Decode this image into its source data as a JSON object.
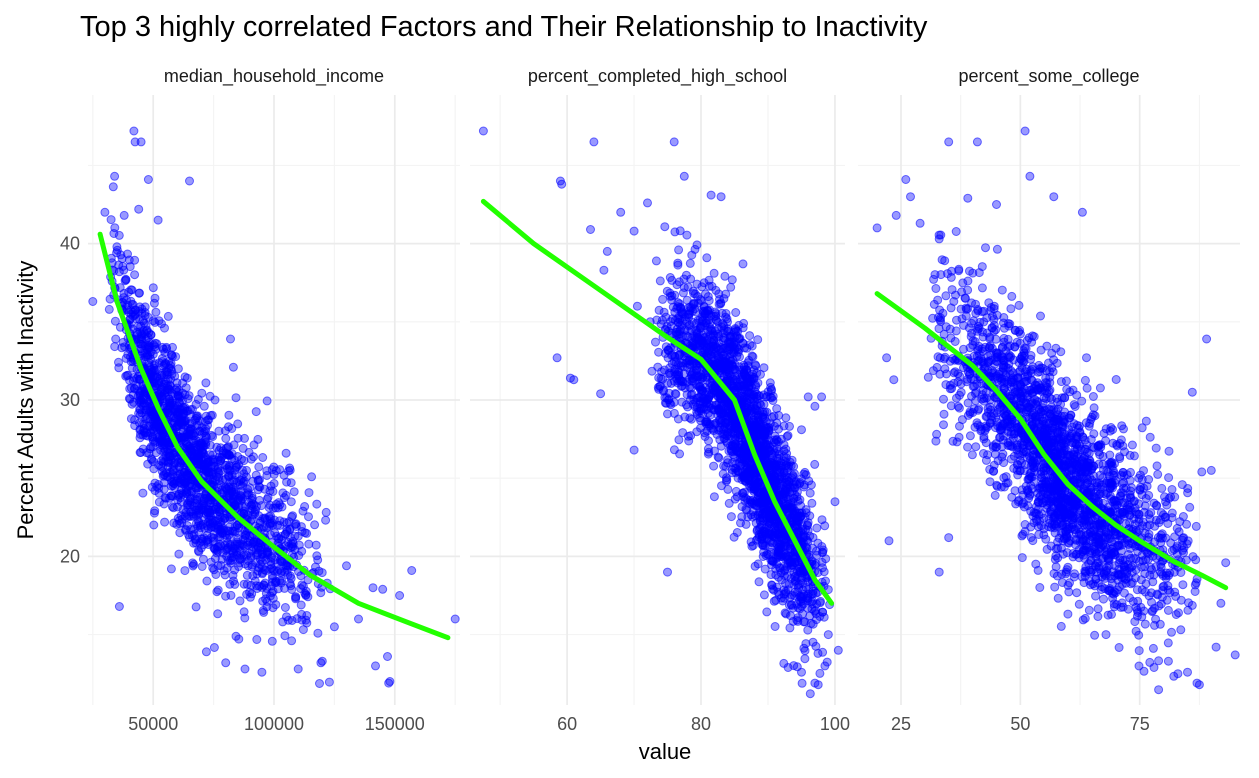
{
  "chart_data": {
    "type": "scatter",
    "title": "Top 3 highly correlated Factors and Their Relationship to Inactivity",
    "xlabel": "value",
    "ylabel": "Percent Adults with Inactivity",
    "ylim": [
      10.5,
      49.5
    ],
    "y_ticks": [
      20,
      30,
      40
    ],
    "grid": true,
    "legend": "none",
    "colors": {
      "points": "#0000ff",
      "smooth": "#22ff00"
    },
    "panels": [
      {
        "name": "median_household_income",
        "xlim": [
          23000,
          177000
        ],
        "x_ticks": [
          50000,
          100000,
          150000
        ],
        "tick_labels": [
          "50000",
          "100000",
          "150000"
        ],
        "n_points": 1800,
        "seed": 11,
        "trend": [
          [
            28000,
            40.6
          ],
          [
            35000,
            36.3
          ],
          [
            45000,
            32.0
          ],
          [
            52000,
            29.5
          ],
          [
            60000,
            27.0
          ],
          [
            70000,
            24.8
          ],
          [
            85000,
            22.5
          ],
          [
            100000,
            20.6
          ],
          [
            115000,
            18.8
          ],
          [
            135000,
            17.0
          ],
          [
            155000,
            15.8
          ],
          [
            172000,
            14.8
          ]
        ],
        "spread": 2.6,
        "x_range": [
          30000,
          125000
        ],
        "x_peak": 55000,
        "outliers": [
          [
            42000,
            47.2
          ],
          [
            42500,
            46.5
          ],
          [
            45000,
            46.5
          ],
          [
            34000,
            44.3
          ],
          [
            48000,
            44.1
          ],
          [
            44000,
            42.2
          ],
          [
            38000,
            41.8
          ],
          [
            30000,
            42.0
          ],
          [
            52000,
            41.5
          ],
          [
            36000,
            16.8
          ],
          [
            65000,
            44.0
          ],
          [
            82000,
            33.9
          ],
          [
            105000,
            26.6
          ],
          [
            112000,
            22.9
          ],
          [
            130000,
            19.4
          ],
          [
            141000,
            18.0
          ],
          [
            145000,
            17.9
          ],
          [
            152000,
            17.5
          ],
          [
            157000,
            19.1
          ],
          [
            175000,
            16.0
          ],
          [
            142000,
            13.0
          ],
          [
            147000,
            13.6
          ],
          [
            148000,
            12.0
          ],
          [
            147500,
            11.9
          ],
          [
            120000,
            13.3
          ],
          [
            110000,
            12.8
          ],
          [
            95000,
            12.6
          ],
          [
            80000,
            13.2
          ],
          [
            88000,
            12.8
          ],
          [
            72000,
            13.9
          ],
          [
            125000,
            15.5
          ],
          [
            135000,
            16.0
          ],
          [
            25000,
            36.3
          ]
        ]
      },
      {
        "name": "percent_completed_high_school",
        "xlim": [
          45.5,
          101.5
        ],
        "x_ticks": [
          60,
          80,
          100
        ],
        "tick_labels": [
          "60",
          "80",
          "100"
        ],
        "n_points": 2300,
        "seed": 23,
        "trend": [
          [
            47.5,
            42.7
          ],
          [
            55,
            40.0
          ],
          [
            65,
            37.0
          ],
          [
            75,
            34.0
          ],
          [
            80,
            32.6
          ],
          [
            85,
            30.0
          ],
          [
            88,
            26.5
          ],
          [
            91,
            23.5
          ],
          [
            94,
            21.0
          ],
          [
            97,
            18.5
          ],
          [
            99.5,
            17.0
          ]
        ],
        "spread": 2.7,
        "x_range": [
          72,
          99.5
        ],
        "x_peak": 89,
        "outliers": [
          [
            47.5,
            47.2
          ],
          [
            64,
            46.5
          ],
          [
            76,
            46.5
          ],
          [
            59,
            44.0
          ],
          [
            59.2,
            43.8
          ],
          [
            77.5,
            44.3
          ],
          [
            72,
            42.6
          ],
          [
            68,
            42.0
          ],
          [
            70,
            40.8
          ],
          [
            63.5,
            40.9
          ],
          [
            66,
            39.5
          ],
          [
            58.5,
            32.7
          ],
          [
            60.5,
            31.4
          ],
          [
            61,
            31.3
          ],
          [
            65,
            30.4
          ],
          [
            70,
            26.8
          ],
          [
            75,
            19.0
          ],
          [
            83,
            43.0
          ],
          [
            81.5,
            43.1
          ],
          [
            65.5,
            38.3
          ],
          [
            70.5,
            36.0
          ],
          [
            100.5,
            14.0
          ],
          [
            97,
            11.9
          ],
          [
            97.5,
            11.8
          ],
          [
            95,
            12.6
          ],
          [
            93,
            12.9
          ],
          [
            98.5,
            13.0
          ],
          [
            99,
            15.0
          ],
          [
            100,
            23.5
          ],
          [
            98,
            30.2
          ],
          [
            97,
            29.6
          ],
          [
            96,
            30.2
          ]
        ]
      },
      {
        "name": "percent_some_college",
        "xlim": [
          16,
          96
        ],
        "x_ticks": [
          25,
          50,
          75
        ],
        "tick_labels": [
          "25",
          "50",
          "75"
        ],
        "n_points": 2200,
        "seed": 37,
        "trend": [
          [
            20,
            36.8
          ],
          [
            30,
            34.6
          ],
          [
            40,
            32.2
          ],
          [
            45,
            30.6
          ],
          [
            50,
            28.8
          ],
          [
            55,
            26.5
          ],
          [
            60,
            24.6
          ],
          [
            65,
            23.2
          ],
          [
            70,
            22.0
          ],
          [
            75,
            21.0
          ],
          [
            82,
            19.7
          ],
          [
            88,
            18.8
          ],
          [
            93,
            18.0
          ]
        ],
        "spread": 3.0,
        "x_range": [
          30,
          88
        ],
        "x_peak": 57,
        "outliers": [
          [
            51,
            47.2
          ],
          [
            35,
            46.5
          ],
          [
            41,
            46.5
          ],
          [
            26,
            44.1
          ],
          [
            27,
            43.0
          ],
          [
            52,
            44.3
          ],
          [
            57,
            43.0
          ],
          [
            63,
            42.0
          ],
          [
            45,
            42.5
          ],
          [
            20,
            41.0
          ],
          [
            24,
            41.8
          ],
          [
            29,
            41.3
          ],
          [
            33,
            40.3
          ],
          [
            39,
            42.9
          ],
          [
            22,
            32.7
          ],
          [
            23.5,
            31.3
          ],
          [
            22.5,
            21.0
          ],
          [
            33,
            19.0
          ],
          [
            35,
            21.2
          ],
          [
            89,
            33.9
          ],
          [
            86,
            30.5
          ],
          [
            88,
            25.4
          ],
          [
            90,
            25.5
          ],
          [
            95,
            13.7
          ],
          [
            91,
            14.2
          ],
          [
            85,
            12.6
          ],
          [
            87,
            11.9
          ],
          [
            87.5,
            11.8
          ],
          [
            83,
            12.5
          ],
          [
            78,
            12.9
          ],
          [
            81,
            13.3
          ],
          [
            92,
            17.0
          ],
          [
            93,
            19.6
          ]
        ]
      }
    ]
  }
}
